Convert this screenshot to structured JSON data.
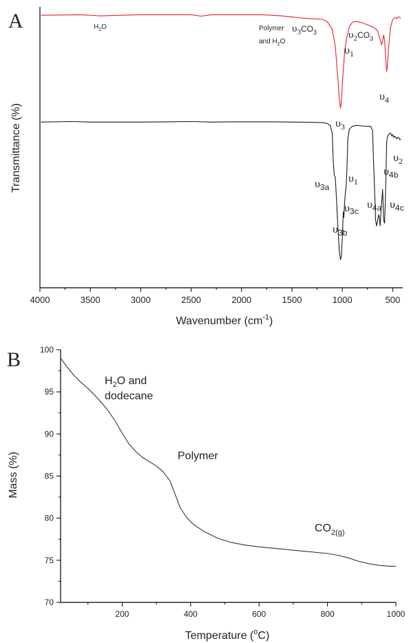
{
  "chart_data": [
    {
      "panel": "A",
      "type": "line",
      "xlabel": "Wavenumber (cm",
      "xlabel_sup": "-1",
      "xlabel_end": ")",
      "ylabel": "Transmittance (%)",
      "xlim": [
        4000,
        400
      ],
      "x_reversed": true,
      "y_ticks_shown": false,
      "ticks": [
        4000,
        3500,
        3000,
        2500,
        2000,
        1500,
        1000,
        500
      ],
      "series": [
        {
          "color": "#e8202a",
          "points": [
            [
              3990,
              0.97
            ],
            [
              3600,
              0.972
            ],
            [
              3400,
              0.968
            ],
            [
              3200,
              0.97
            ],
            [
              3000,
              0.972
            ],
            [
              2800,
              0.972
            ],
            [
              2500,
              0.972
            ],
            [
              2400,
              0.967
            ],
            [
              2300,
              0.972
            ],
            [
              2000,
              0.972
            ],
            [
              1800,
              0.972
            ],
            [
              1600,
              0.968
            ],
            [
              1500,
              0.964
            ],
            [
              1450,
              0.962
            ],
            [
              1400,
              0.96
            ],
            [
              1300,
              0.958
            ],
            [
              1200,
              0.956
            ],
            [
              1150,
              0.948
            ],
            [
              1100,
              0.92
            ],
            [
              1070,
              0.86
            ],
            [
              1045,
              0.75
            ],
            [
              1030,
              0.67
            ],
            [
              1018,
              0.64
            ],
            [
              1010,
              0.66
            ],
            [
              995,
              0.75
            ],
            [
              975,
              0.85
            ],
            [
              950,
              0.9
            ],
            [
              930,
              0.93
            ],
            [
              900,
              0.945
            ],
            [
              860,
              0.948
            ],
            [
              820,
              0.945
            ],
            [
              780,
              0.94
            ],
            [
              740,
              0.935
            ],
            [
              710,
              0.93
            ],
            [
              680,
              0.925
            ],
            [
              650,
              0.915
            ],
            [
              630,
              0.89
            ],
            [
              610,
              0.865
            ],
            [
              600,
              0.88
            ],
            [
              590,
              0.9
            ],
            [
              580,
              0.88
            ],
            [
              570,
              0.82
            ],
            [
              560,
              0.77
            ],
            [
              552,
              0.79
            ],
            [
              540,
              0.86
            ],
            [
              520,
              0.93
            ],
            [
              500,
              0.955
            ],
            [
              480,
              0.962
            ],
            [
              460,
              0.958
            ],
            [
              440,
              0.965
            ],
            [
              420,
              0.96
            ]
          ]
        },
        {
          "color": "#1a1a1a",
          "points": [
            [
              3990,
              0.59
            ],
            [
              3700,
              0.592
            ],
            [
              3500,
              0.59
            ],
            [
              3200,
              0.59
            ],
            [
              3000,
              0.59
            ],
            [
              2700,
              0.591
            ],
            [
              2500,
              0.592
            ],
            [
              2300,
              0.59
            ],
            [
              2100,
              0.591
            ],
            [
              1950,
              0.591
            ],
            [
              1700,
              0.591
            ],
            [
              1500,
              0.59
            ],
            [
              1300,
              0.589
            ],
            [
              1200,
              0.588
            ],
            [
              1150,
              0.585
            ],
            [
              1120,
              0.578
            ],
            [
              1100,
              0.55
            ],
            [
              1090,
              0.45
            ],
            [
              1080,
              0.4
            ],
            [
              1070,
              0.395
            ],
            [
              1060,
              0.33
            ],
            [
              1045,
              0.22
            ],
            [
              1030,
              0.13
            ],
            [
              1018,
              0.1
            ],
            [
              1010,
              0.11
            ],
            [
              1000,
              0.18
            ],
            [
              990,
              0.27
            ],
            [
              985,
              0.25
            ],
            [
              978,
              0.3
            ],
            [
              970,
              0.34
            ],
            [
              962,
              0.36
            ],
            [
              955,
              0.42
            ],
            [
              945,
              0.53
            ],
            [
              930,
              0.565
            ],
            [
              900,
              0.575
            ],
            [
              850,
              0.578
            ],
            [
              800,
              0.576
            ],
            [
              760,
              0.575
            ],
            [
              720,
              0.575
            ],
            [
              700,
              0.56
            ],
            [
              690,
              0.45
            ],
            [
              680,
              0.35
            ],
            [
              670,
              0.24
            ],
            [
              660,
              0.22
            ],
            [
              650,
              0.24
            ],
            [
              640,
              0.26
            ],
            [
              632,
              0.25
            ],
            [
              625,
              0.22
            ],
            [
              615,
              0.28
            ],
            [
              600,
              0.35
            ],
            [
              590,
              0.24
            ],
            [
              580,
              0.23
            ],
            [
              570,
              0.35
            ],
            [
              560,
              0.52
            ],
            [
              550,
              0.54
            ],
            [
              540,
              0.545
            ],
            [
              530,
              0.55
            ],
            [
              520,
              0.55
            ],
            [
              510,
              0.54
            ],
            [
              500,
              0.545
            ],
            [
              490,
              0.535
            ],
            [
              480,
              0.54
            ],
            [
              470,
              0.535
            ],
            [
              460,
              0.53
            ],
            [
              450,
              0.535
            ],
            [
              440,
              0.535
            ],
            [
              430,
              0.527
            ],
            [
              420,
              0.53
            ]
          ]
        }
      ],
      "annotations": [
        {
          "base": "H",
          "sub": "2",
          "rest": "O",
          "size": 10
        },
        {
          "lines": [
            "Polymer",
            "and H"
          ],
          "sub2": "2",
          "rest2": "O"
        },
        {
          "greek": "υ",
          "sub": "3",
          "rest": "CO",
          "sub2": "3"
        },
        {
          "greek": "υ",
          "sub": "2",
          "rest": "CO",
          "sub2": "3"
        },
        {
          "greek": "υ",
          "sub": "1"
        },
        {
          "greek": "υ",
          "sub": "3"
        },
        {
          "greek": "υ",
          "sub": "4"
        },
        {
          "greek": "υ",
          "sub": "2"
        },
        {
          "greek": "υ",
          "sub": "3a"
        },
        {
          "greek": "υ",
          "sub": "1"
        },
        {
          "greek": "υ",
          "sub": "4b"
        },
        {
          "greek": "υ",
          "sub": "3c"
        },
        {
          "greek": "υ",
          "sub": "4a"
        },
        {
          "greek": "υ",
          "sub": "4c"
        },
        {
          "greek": "υ",
          "sub": "3b"
        }
      ]
    },
    {
      "panel": "B",
      "type": "line",
      "xlabel": "Temperature (",
      "xlabel_sup": "o",
      "xlabel_end": "C)",
      "ylabel": "Mass (%)",
      "xlim": [
        20,
        1000
      ],
      "ylim": [
        70,
        100
      ],
      "x_ticks": [
        200,
        400,
        600,
        800,
        1000
      ],
      "y_ticks": [
        70,
        75,
        80,
        85,
        90,
        95,
        100
      ],
      "series": [
        {
          "color": "#333333",
          "points": [
            [
              20,
              99.0
            ],
            [
              40,
              97.9
            ],
            [
              60,
              96.9
            ],
            [
              80,
              96.1
            ],
            [
              100,
              95.4
            ],
            [
              120,
              94.6
            ],
            [
              140,
              93.7
            ],
            [
              160,
              92.7
            ],
            [
              180,
              91.5
            ],
            [
              200,
              90.1
            ],
            [
              220,
              88.8
            ],
            [
              240,
              87.9
            ],
            [
              260,
              87.2
            ],
            [
              280,
              86.7
            ],
            [
              300,
              86.2
            ],
            [
              320,
              85.5
            ],
            [
              340,
              84.4
            ],
            [
              355,
              82.8
            ],
            [
              370,
              81.2
            ],
            [
              390,
              80.0
            ],
            [
              410,
              79.2
            ],
            [
              440,
              78.4
            ],
            [
              480,
              77.6
            ],
            [
              520,
              77.1
            ],
            [
              560,
              76.8
            ],
            [
              600,
              76.6
            ],
            [
              650,
              76.4
            ],
            [
              700,
              76.2
            ],
            [
              750,
              76.0
            ],
            [
              800,
              75.8
            ],
            [
              830,
              75.6
            ],
            [
              860,
              75.3
            ],
            [
              890,
              74.9
            ],
            [
              920,
              74.6
            ],
            [
              950,
              74.4
            ],
            [
              980,
              74.3
            ],
            [
              1000,
              74.3
            ]
          ]
        }
      ],
      "annotations": [
        {
          "base": "H",
          "sub": "2",
          "rest": "O and",
          "line2": "dodecane"
        },
        {
          "text": "Polymer"
        },
        {
          "base": "CO",
          "sub": "2(g)"
        }
      ]
    }
  ],
  "panel_labels": [
    "A",
    "B"
  ]
}
